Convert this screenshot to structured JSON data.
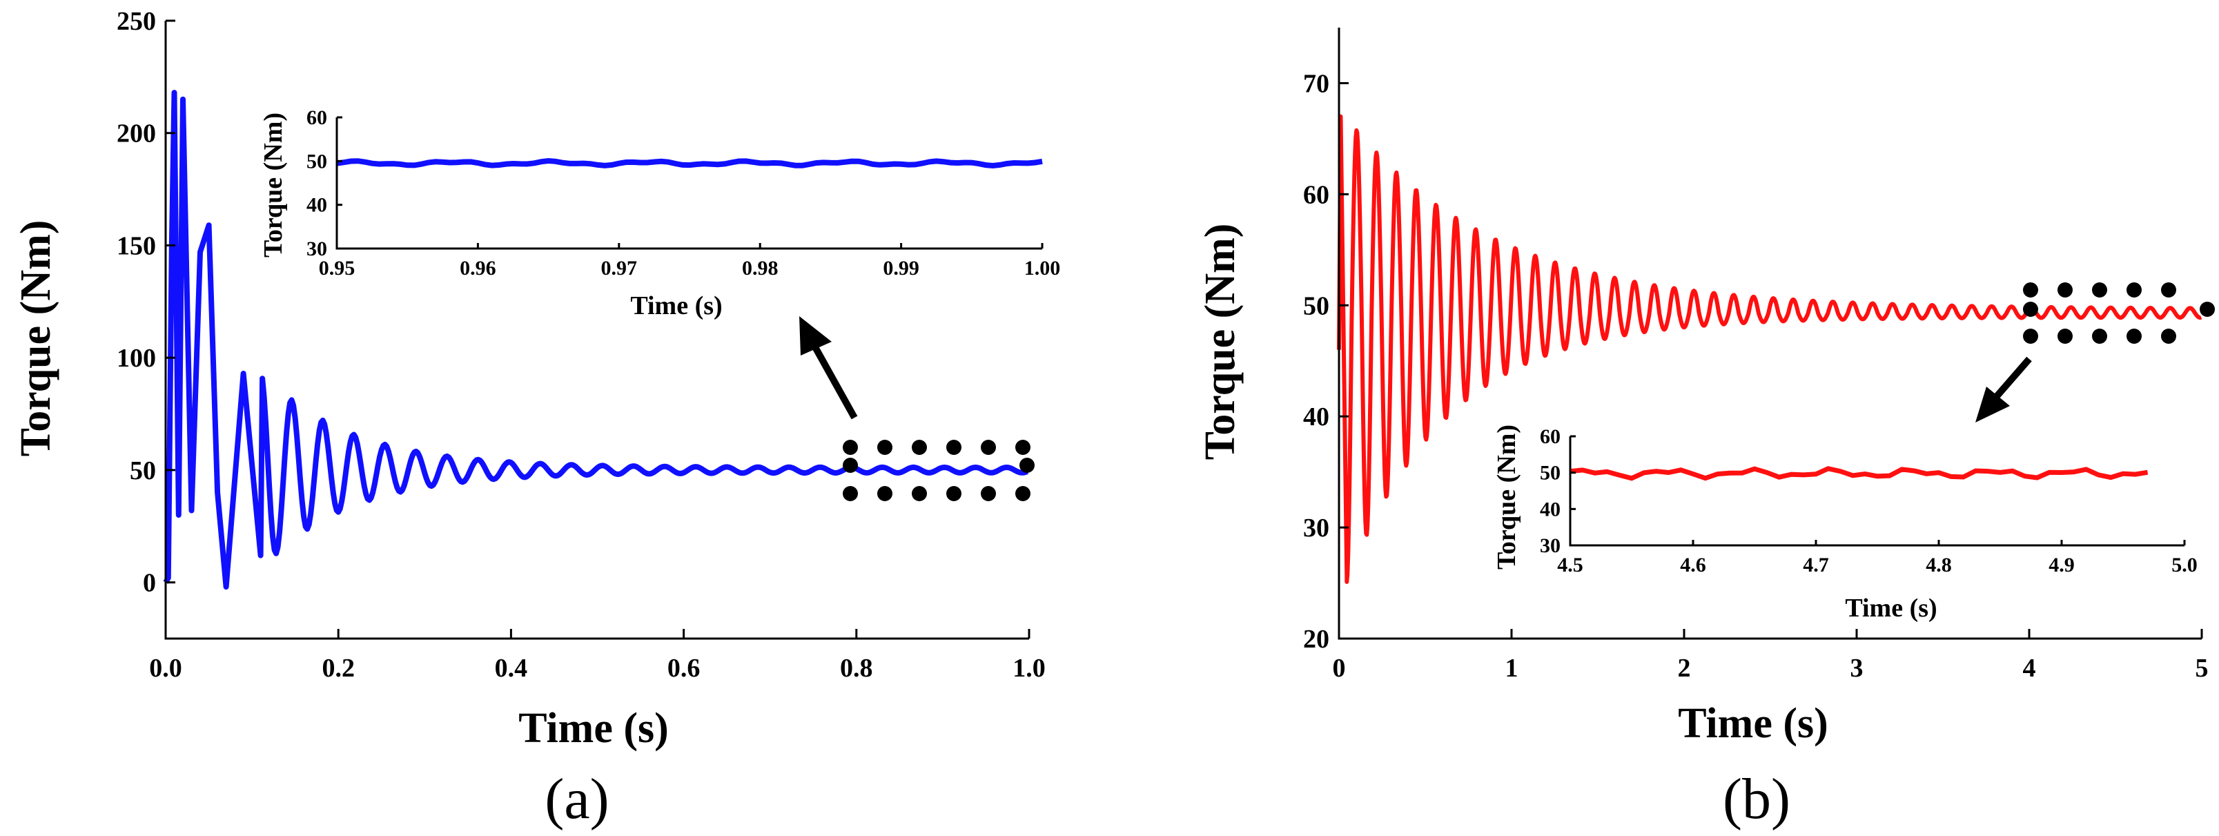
{
  "chart_data": [
    {
      "id": "a",
      "type": "line",
      "caption": "(a)",
      "xlabel": "Time (s)",
      "ylabel": "Torque (Nm)",
      "xlim": [
        0,
        1.0
      ],
      "ylim": [
        -25,
        250
      ],
      "xticks": [
        0.0,
        0.2,
        0.4,
        0.6,
        0.8,
        1.0
      ],
      "xtick_labels": [
        "0.0",
        "0.2",
        "0.4",
        "0.6",
        "0.8",
        "1.0"
      ],
      "yticks": [
        0,
        50,
        100,
        150,
        200,
        250
      ],
      "ytick_labels": [
        "0",
        "50",
        "100",
        "150",
        "200",
        "250"
      ],
      "color": "#1010ff",
      "series": [
        {
          "name": "Torque",
          "model": "damped-oscillation",
          "steady_value": 50,
          "peak": 218,
          "peak_time": 0.01,
          "initial_value": 0,
          "oscillation_period": 0.036,
          "decay_time_constant": 0.1,
          "first_peaks": [
            [
              0.01,
              218
            ],
            [
              0.02,
              215
            ],
            [
              0.04,
              147
            ],
            [
              0.05,
              159
            ],
            [
              0.07,
              -2
            ],
            [
              0.09,
              93
            ]
          ]
        }
      ],
      "annotations": {
        "arrow_direction": "up-left",
        "highlight": "dotted box around 0.8–1.0 s"
      },
      "inset": {
        "xlabel": "Time (s)",
        "ylabel": "Torque (Nm)",
        "xlim": [
          0.95,
          1.0
        ],
        "ylim": [
          30,
          60
        ],
        "xticks": [
          0.95,
          0.96,
          0.97,
          0.98,
          0.99,
          1.0
        ],
        "xtick_labels": [
          "0.95",
          "0.96",
          "0.97",
          "0.98",
          "0.99",
          "1.00"
        ],
        "yticks": [
          30,
          40,
          50,
          60
        ],
        "ytick_labels": [
          "30",
          "40",
          "50",
          "60"
        ],
        "steady_value": 49.5
      }
    },
    {
      "id": "b",
      "type": "line",
      "caption": "(b)",
      "xlabel": "Time (s)",
      "ylabel": "Torque (Nm)",
      "xlim": [
        0,
        5
      ],
      "ylim": [
        20,
        75
      ],
      "xticks": [
        0,
        1,
        2,
        3,
        4,
        5
      ],
      "xtick_labels": [
        "0",
        "1",
        "2",
        "3",
        "4",
        "5"
      ],
      "yticks": [
        20,
        30,
        40,
        50,
        60,
        70
      ],
      "ytick_labels": [
        "20",
        "30",
        "40",
        "50",
        "60",
        "70"
      ],
      "color": "#ff1010",
      "series": [
        {
          "name": "Torque",
          "model": "damped-oscillation",
          "steady_value": 49.3,
          "peak": 67,
          "trough": 25.5,
          "oscillation_period": 0.115,
          "decay_time_constant": 0.85
        }
      ],
      "annotations": {
        "arrow_direction": "down-left",
        "highlight": "dotted box around 4.0–5.0 s"
      },
      "inset": {
        "xlabel": "Time (s)",
        "ylabel": "Torque (Nm)",
        "xlim": [
          4.5,
          5.0
        ],
        "ylim": [
          30,
          60
        ],
        "xticks": [
          4.5,
          4.6,
          4.7,
          4.8,
          4.9,
          5.0
        ],
        "xtick_labels": [
          "4.5",
          "4.6",
          "4.7",
          "4.8",
          "4.9",
          "5.0"
        ],
        "yticks": [
          30,
          40,
          50,
          60
        ],
        "ytick_labels": [
          "30",
          "40",
          "50",
          "60"
        ],
        "steady_value": 49.8
      }
    }
  ]
}
